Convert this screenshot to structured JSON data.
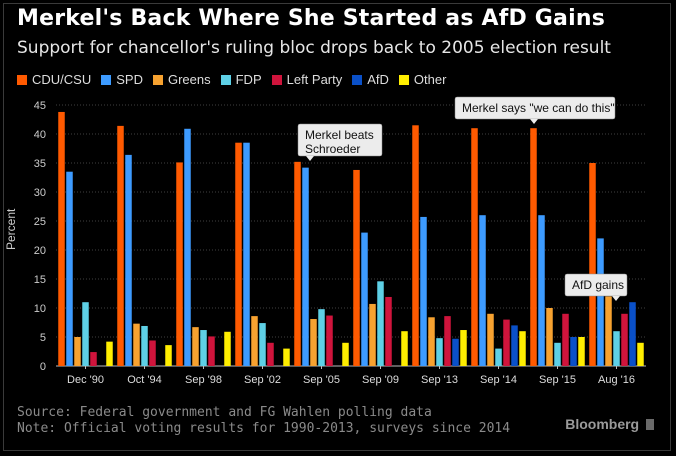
{
  "chart_data": {
    "type": "bar",
    "title": "Merkel's Back Where She Started as AfD Gains",
    "subtitle": "Support for chancellor's ruling bloc drops back to 2005 election result",
    "ylabel": "Percent",
    "xlabel": "",
    "ylim": [
      0,
      45
    ],
    "yticks": [
      0,
      5,
      10,
      15,
      20,
      25,
      30,
      35,
      40,
      45
    ],
    "grid": true,
    "legend_placement": "top",
    "categories": [
      "Dec '90",
      "Oct '94",
      "Sep '98",
      "Sep '02",
      "Sep '05",
      "Sep '09",
      "Sep '13",
      "Sep '14",
      "Sep '15",
      "Aug '16"
    ],
    "series": [
      {
        "name": "CDU/CSU",
        "color": "#ff5a00",
        "values": [
          43.8,
          41.4,
          35.1,
          38.5,
          35.2,
          33.8,
          41.5,
          41,
          41,
          35
        ]
      },
      {
        "name": "SPD",
        "color": "#3d9bff",
        "values": [
          33.5,
          36.4,
          40.9,
          38.5,
          34.2,
          23,
          25.7,
          26,
          26,
          22
        ]
      },
      {
        "name": "Greens",
        "color": "#f7a230",
        "values": [
          5,
          7.3,
          6.7,
          8.6,
          8.1,
          10.7,
          8.4,
          9,
          10,
          12
        ]
      },
      {
        "name": "FDP",
        "color": "#5ed0e6",
        "values": [
          11,
          6.9,
          6.2,
          7.4,
          9.8,
          14.6,
          4.8,
          3,
          4,
          6
        ]
      },
      {
        "name": "Left Party",
        "color": "#d0143c",
        "values": [
          2.4,
          4.4,
          5.1,
          4,
          8.7,
          11.9,
          8.6,
          8,
          9,
          9
        ]
      },
      {
        "name": "AfD",
        "color": "#0a50c8",
        "values": [
          0,
          0,
          0,
          0,
          0,
          0,
          4.7,
          7,
          5,
          11
        ]
      },
      {
        "name": "Other",
        "color": "#ffee00",
        "values": [
          4.2,
          3.6,
          5.9,
          3,
          4,
          6,
          6.2,
          6,
          5,
          4
        ]
      }
    ],
    "annotations": [
      {
        "text_lines": [
          "Merkel beats",
          "Schroeder"
        ],
        "category": "Sep '05",
        "series": "SPD"
      },
      {
        "text_lines": [
          "Merkel says \"we can do this\""
        ],
        "category": "Sep '15",
        "series": "CDU/CSU"
      },
      {
        "text_lines": [
          "AfD gains"
        ],
        "category": "Aug '16",
        "series": "AfD"
      }
    ]
  },
  "footer": {
    "source": "Source: Federal government and FG Wahlen polling data",
    "note": "Note: Official voting results for 1990-2013, surveys since 2014",
    "brand": "Bloomberg"
  }
}
